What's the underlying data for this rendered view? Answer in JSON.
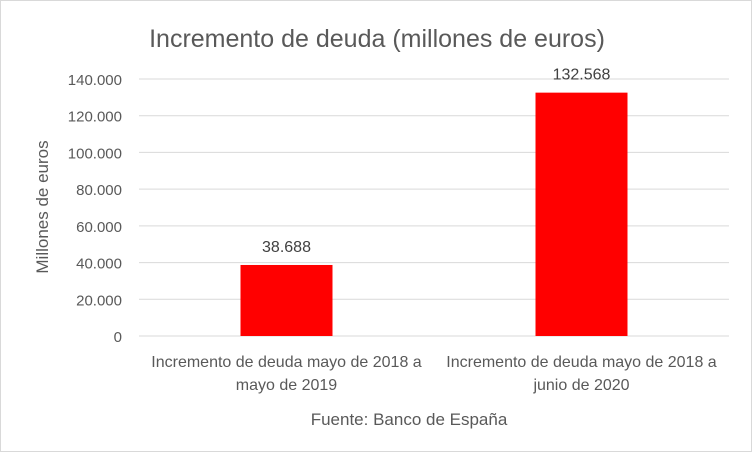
{
  "chart_data": {
    "type": "bar",
    "title": "Incremento de deuda (millones de euros)",
    "xlabel": "Fuente: Banco de España",
    "ylabel": "Millones de euros",
    "categories": [
      [
        "Incremento de deuda mayo de 2018 a",
        "mayo de 2019"
      ],
      [
        "Incremento de deuda mayo de 2018 a",
        "junio de 2020"
      ]
    ],
    "values": [
      38688,
      132568
    ],
    "data_labels": [
      "38.688",
      "132.568"
    ],
    "ylim": [
      0,
      140000
    ],
    "yticks": [
      0,
      20000,
      40000,
      60000,
      80000,
      100000,
      120000,
      140000
    ],
    "ytick_labels": [
      "0",
      "20.000",
      "40.000",
      "60.000",
      "80.000",
      "100.000",
      "120.000",
      "140.000"
    ],
    "grid": true,
    "colors": {
      "bar": "#ff0000",
      "grid": "#d9d9d9",
      "text": "#595959"
    }
  }
}
